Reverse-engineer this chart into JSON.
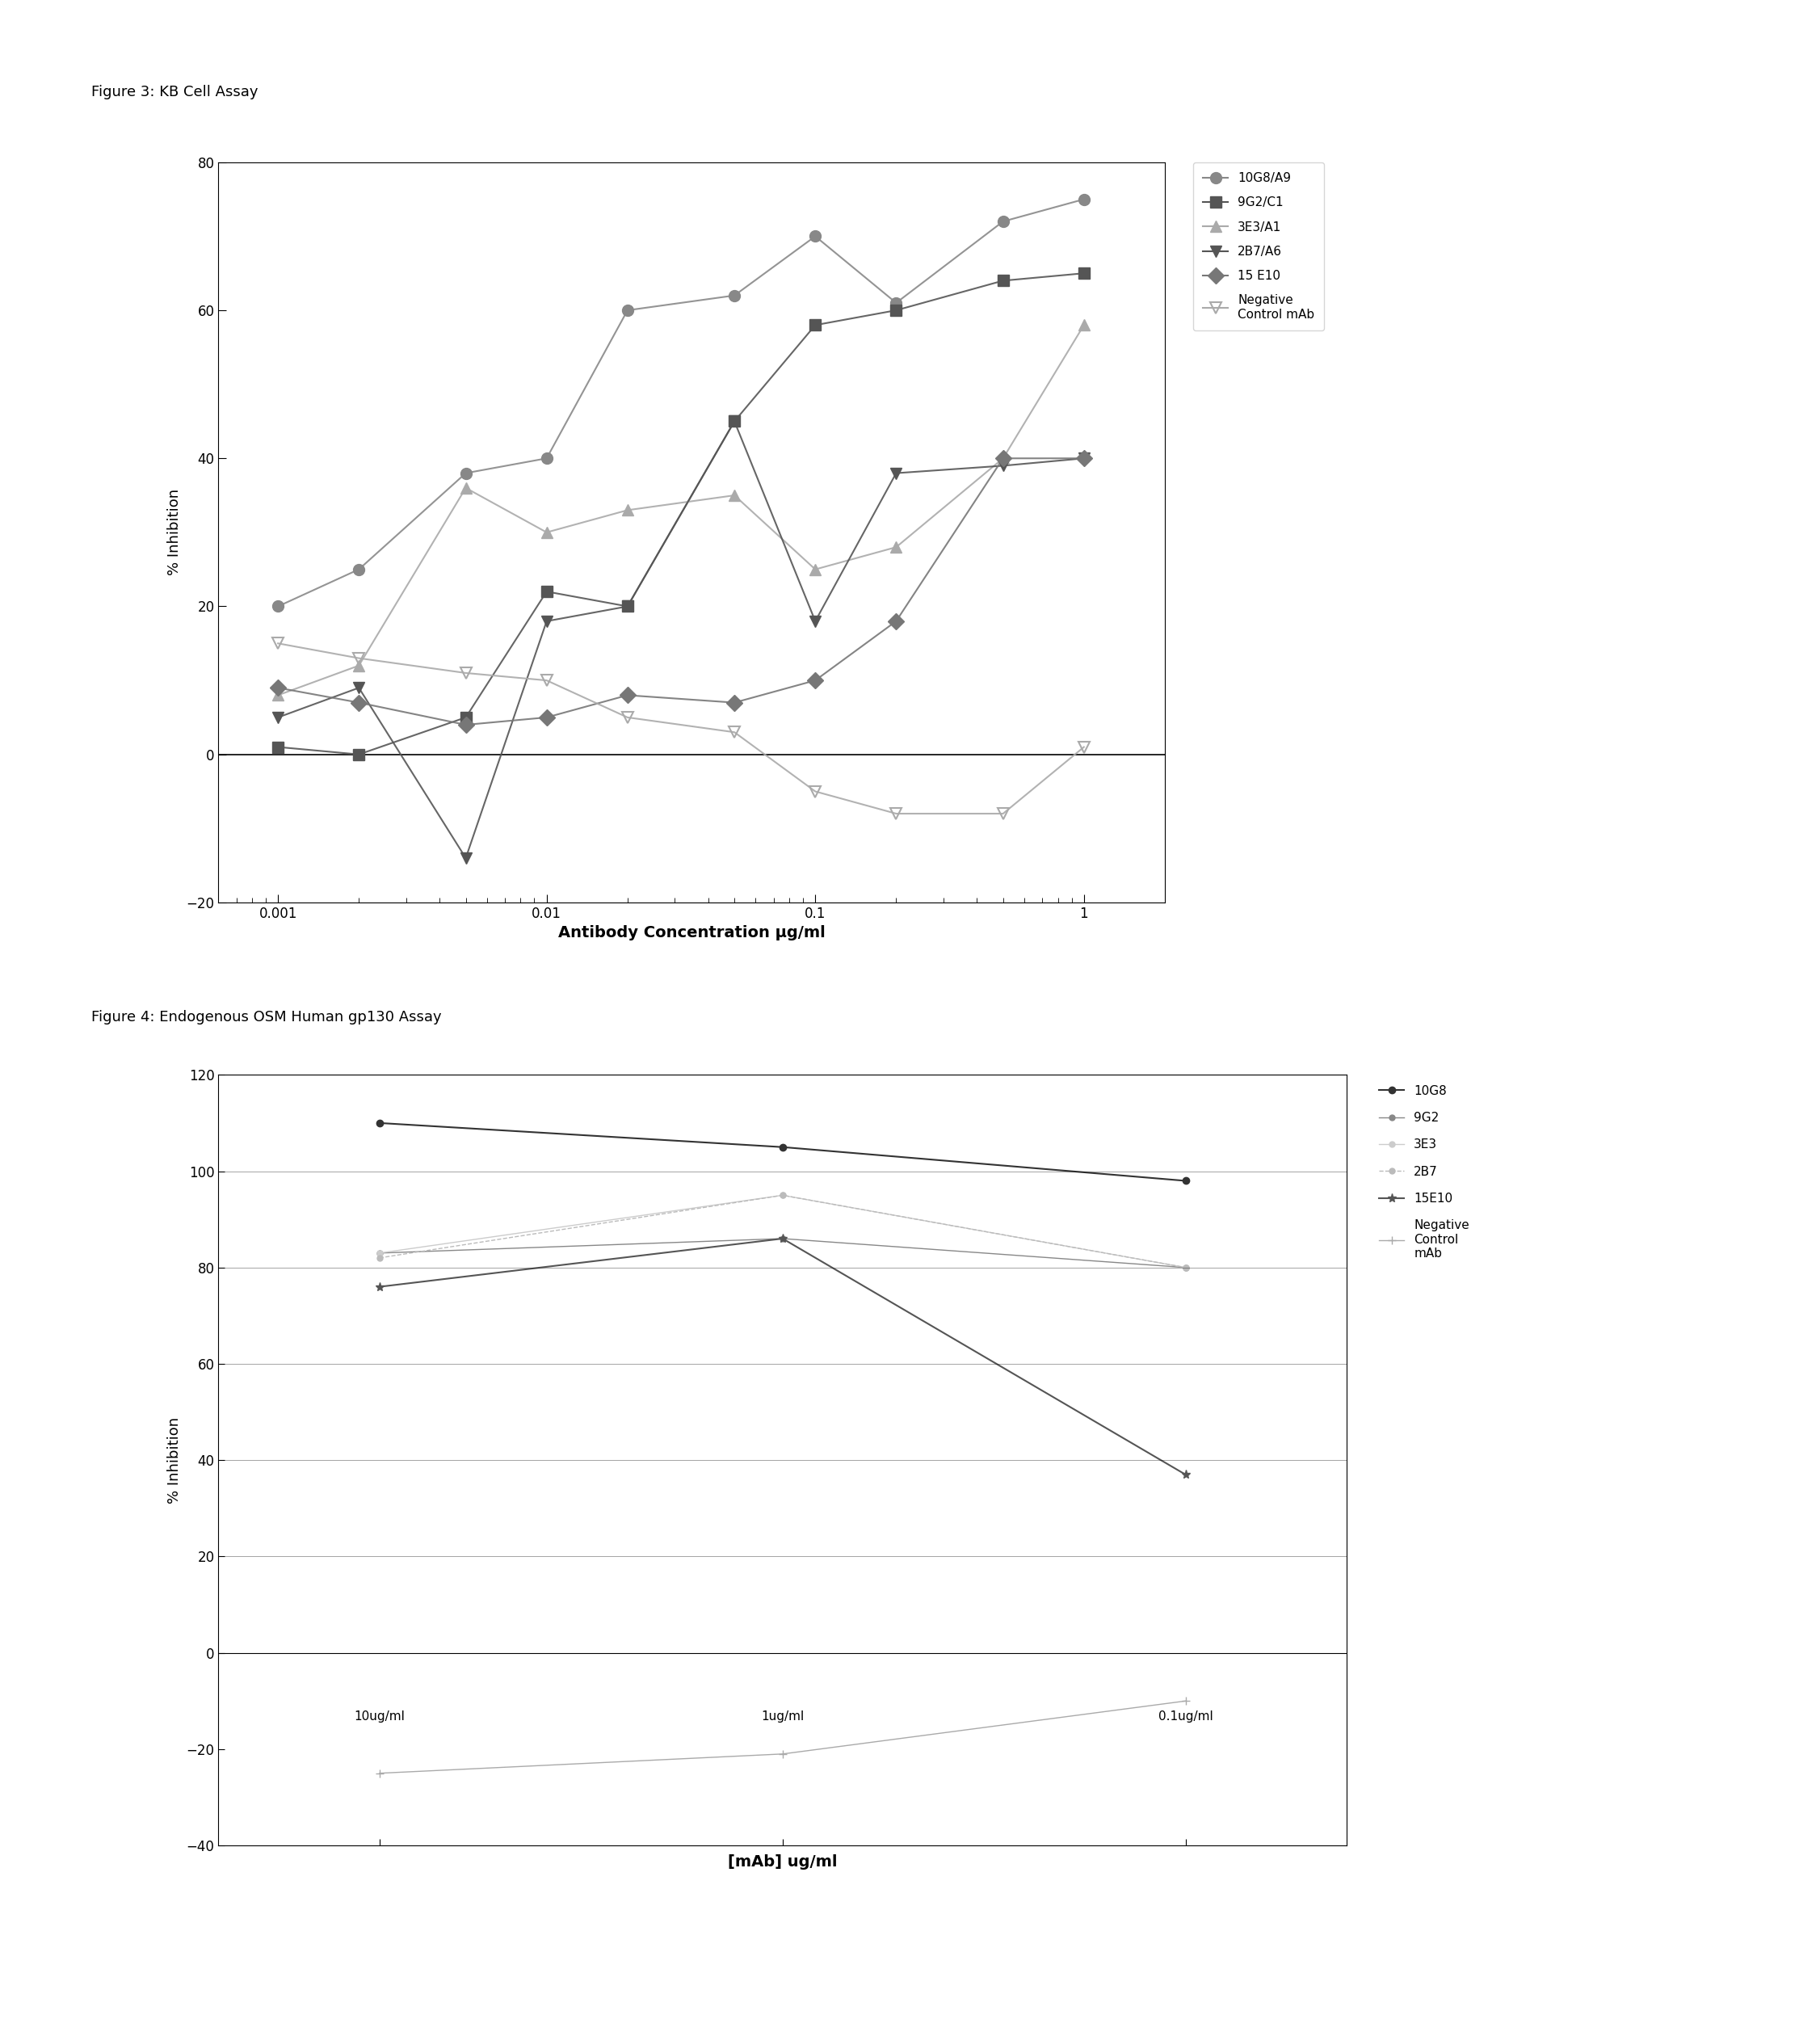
{
  "fig3_title": "Figure 3: KB Cell Assay",
  "fig4_title": "Figure 4: Endogenous OSM Human gp130 Assay",
  "fig3_xlabel": "Antibody Concentration µg/ml",
  "fig3_ylabel": "% Inhibition",
  "fig4_xlabel": "[mAb] ug/ml",
  "fig4_ylabel": "% Inhibition",
  "fig3_ylim": [
    -20,
    80
  ],
  "fig3_yticks": [
    -20,
    0,
    20,
    40,
    60,
    80
  ],
  "fig3_xlim": [
    0.0006,
    2.0
  ],
  "fig4_ylim": [
    -40,
    120
  ],
  "fig4_yticks": [
    -40,
    -20,
    0,
    20,
    40,
    60,
    80,
    100,
    120
  ],
  "series_10G8A9": {
    "label": "10G8/A9",
    "color": "#888888",
    "marker": "o",
    "fillstyle": "full",
    "x": [
      0.001,
      0.002,
      0.005,
      0.01,
      0.02,
      0.05,
      0.1,
      0.2,
      0.5,
      1.0
    ],
    "y": [
      20,
      25,
      38,
      40,
      60,
      62,
      70,
      61,
      72,
      75
    ]
  },
  "series_9G2C1": {
    "label": "9G2/C1",
    "color": "#555555",
    "marker": "s",
    "fillstyle": "full",
    "x": [
      0.001,
      0.002,
      0.005,
      0.01,
      0.02,
      0.05,
      0.1,
      0.2,
      0.5,
      1.0
    ],
    "y": [
      1,
      0,
      5,
      22,
      20,
      45,
      58,
      60,
      64,
      65
    ]
  },
  "series_3E3A1": {
    "label": "3E3/A1",
    "color": "#aaaaaa",
    "marker": "^",
    "fillstyle": "full",
    "x": [
      0.001,
      0.002,
      0.005,
      0.01,
      0.02,
      0.05,
      0.1,
      0.2,
      0.5,
      1.0
    ],
    "y": [
      8,
      12,
      36,
      30,
      33,
      35,
      25,
      28,
      40,
      58
    ]
  },
  "series_2B7A6": {
    "label": "2B7/A6",
    "color": "#555555",
    "marker": "v",
    "fillstyle": "full",
    "x": [
      0.001,
      0.002,
      0.005,
      0.01,
      0.02,
      0.05,
      0.1,
      0.2,
      0.5,
      1.0
    ],
    "y": [
      5,
      9,
      -14,
      18,
      20,
      45,
      18,
      38,
      39,
      40
    ]
  },
  "series_15E10": {
    "label": "15 E10",
    "color": "#777777",
    "marker": "D",
    "fillstyle": "full",
    "x": [
      0.001,
      0.002,
      0.005,
      0.01,
      0.02,
      0.05,
      0.1,
      0.2,
      0.5,
      1.0
    ],
    "y": [
      9,
      7,
      4,
      5,
      8,
      7,
      10,
      18,
      40,
      40
    ]
  },
  "series_neg_ctrl": {
    "label": "Negative\nControl mAb",
    "color": "#aaaaaa",
    "marker": "v",
    "fillstyle": "none",
    "x": [
      0.001,
      0.002,
      0.005,
      0.01,
      0.02,
      0.05,
      0.1,
      0.2,
      0.5,
      1.0
    ],
    "y": [
      15,
      13,
      11,
      10,
      5,
      3,
      -5,
      -8,
      -8,
      1
    ]
  },
  "fig4_categories": [
    0,
    1,
    2
  ],
  "fig4_cat_labels": [
    "10ug/ml",
    "1ug/ml",
    "0.1ug/ml"
  ],
  "fig4_series_order": [
    "10G8",
    "9G2",
    "3E3",
    "2B7",
    "15E10",
    "Negative Control mAb"
  ],
  "fig4_series": {
    "10G8": {
      "color": "#333333",
      "marker": "o",
      "linestyle": "-",
      "linewidth": 1.5,
      "markersize": 6,
      "values": [
        110,
        105,
        98
      ]
    },
    "9G2": {
      "color": "#888888",
      "marker": "o",
      "linestyle": "-",
      "linewidth": 1.0,
      "markersize": 5,
      "values": [
        83,
        86,
        80
      ]
    },
    "3E3": {
      "color": "#cccccc",
      "marker": "o",
      "linestyle": "-",
      "linewidth": 1.0,
      "markersize": 5,
      "values": [
        83,
        95,
        80
      ]
    },
    "2B7": {
      "color": "#bbbbbb",
      "marker": "o",
      "linestyle": "--",
      "linewidth": 1.0,
      "markersize": 5,
      "values": [
        82,
        95,
        80
      ]
    },
    "15E10": {
      "color": "#555555",
      "marker": "*",
      "linestyle": "-",
      "linewidth": 1.5,
      "markersize": 8,
      "values": [
        76,
        86,
        37
      ]
    },
    "Negative Control mAb": {
      "color": "#aaaaaa",
      "marker": "+",
      "linestyle": "-",
      "linewidth": 1.0,
      "markersize": 7,
      "values": [
        -25,
        -21,
        -10
      ]
    }
  }
}
